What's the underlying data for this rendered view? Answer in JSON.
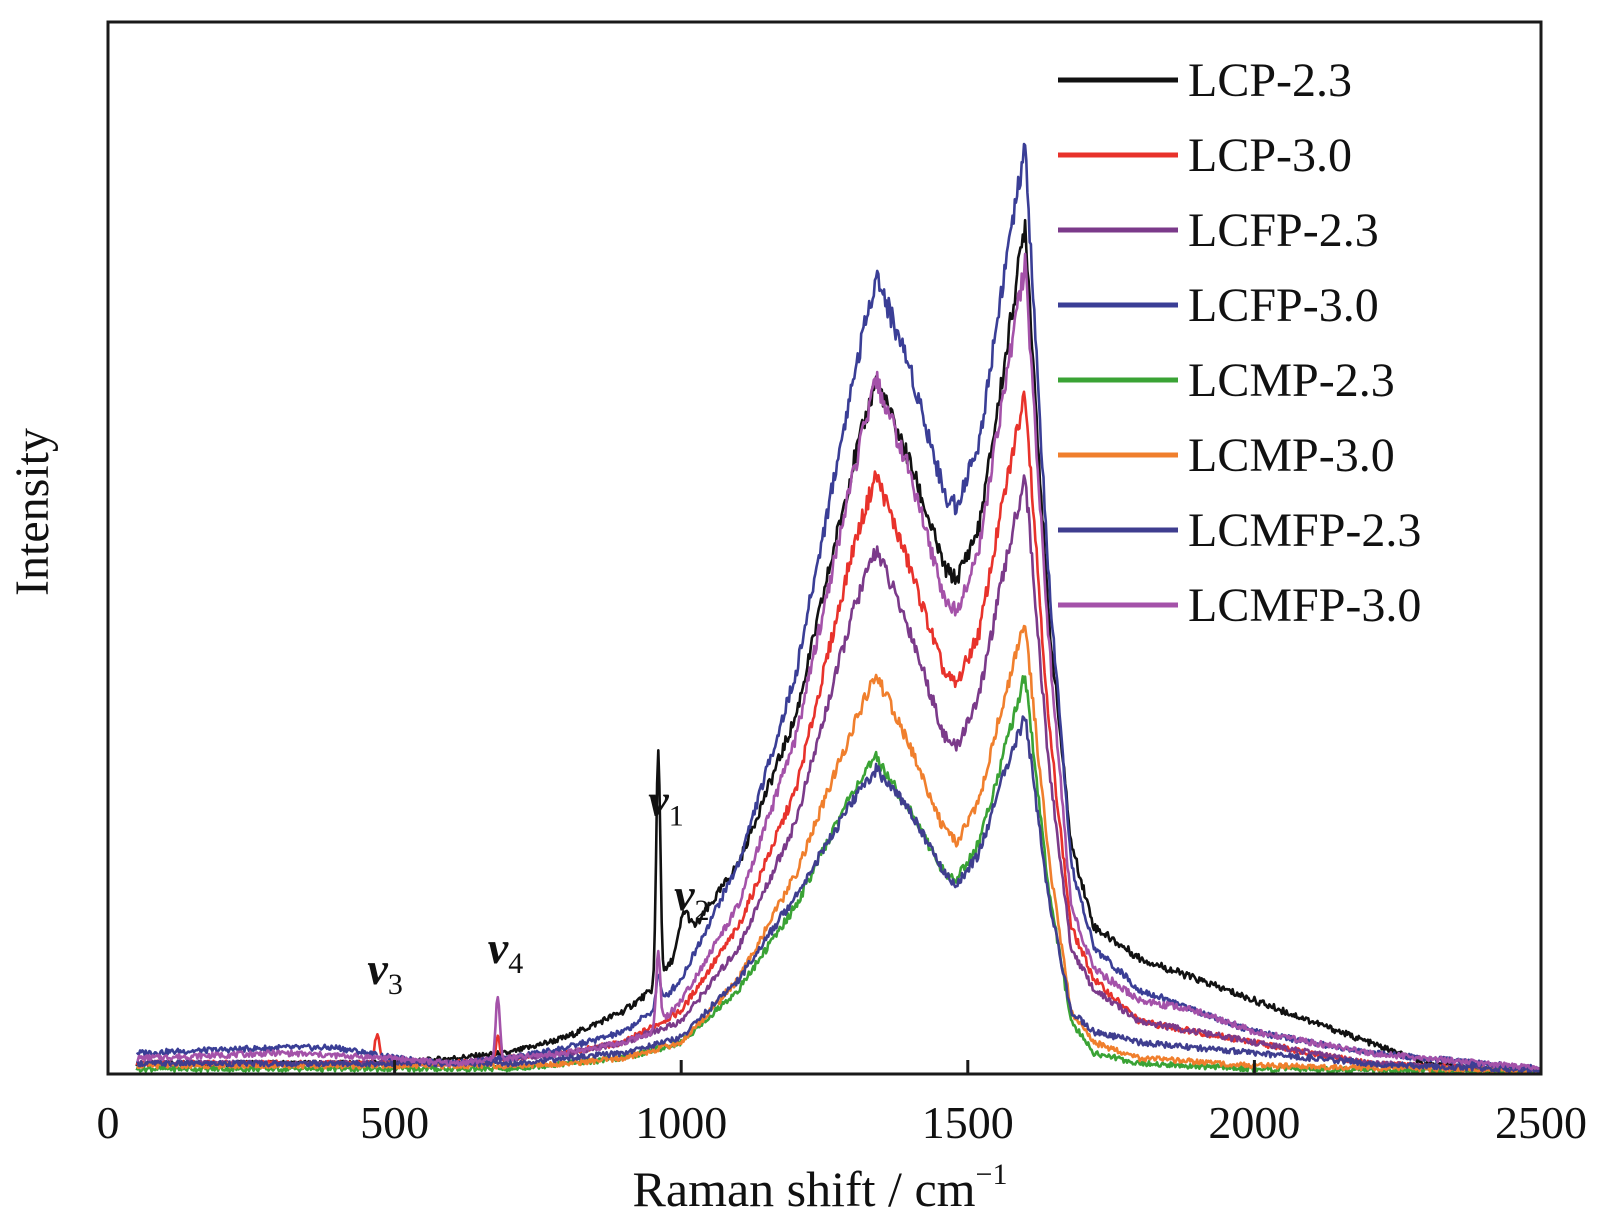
{
  "chart_data": {
    "type": "line",
    "title": "",
    "xlabel": "Raman shift / cm",
    "xlabel_superscript": "−1",
    "ylabel": "Intensity",
    "xlim": [
      0,
      2500
    ],
    "ylim": [
      0,
      100
    ],
    "xticks": [
      0,
      500,
      1000,
      1500,
      2000,
      2500
    ],
    "xtick_labels": [
      "0",
      "500",
      "1000",
      "1500",
      "2000",
      "2500"
    ],
    "grid": false,
    "legend_position": "top-right",
    "annotations": [
      {
        "base": "v",
        "sub": "1",
        "x": 960,
        "y": 24
      },
      {
        "base": "v",
        "sub": "2",
        "x": 1005,
        "y": 15
      },
      {
        "base": "v",
        "sub": "3",
        "x": 470,
        "y": 8
      },
      {
        "base": "v",
        "sub": "4",
        "x": 680,
        "y": 10
      }
    ],
    "series": [
      {
        "name": "LCP-2.3",
        "color": "#111111",
        "d1": 1340,
        "h1": 66,
        "g": 1600,
        "h2": 81,
        "points": [
          [
            50,
            1
          ],
          [
            300,
            1
          ],
          [
            500,
            1
          ],
          [
            600,
            1.5
          ],
          [
            700,
            2
          ],
          [
            800,
            3.5
          ],
          [
            900,
            6
          ],
          [
            950,
            8
          ],
          [
            1000,
            12
          ],
          [
            1100,
            20
          ],
          [
            1200,
            34
          ],
          [
            1300,
            58
          ],
          [
            1340,
            66
          ],
          [
            1400,
            58
          ],
          [
            1460,
            48
          ],
          [
            1480,
            47
          ],
          [
            1520,
            52
          ],
          [
            1560,
            66
          ],
          [
            1600,
            81
          ],
          [
            1640,
            44
          ],
          [
            1680,
            22
          ],
          [
            1720,
            14
          ],
          [
            1800,
            11
          ],
          [
            1900,
            9
          ],
          [
            2000,
            7
          ],
          [
            2100,
            5
          ],
          [
            2200,
            3
          ],
          [
            2300,
            1
          ],
          [
            2400,
            0.5
          ],
          [
            2500,
            0.3
          ]
        ]
      },
      {
        "name": "LCP-3.0",
        "color": "#e8322b",
        "d1": 1340,
        "h1": 57,
        "g": 1600,
        "h2": 65,
        "points": [
          [
            50,
            1
          ],
          [
            300,
            1
          ],
          [
            500,
            1
          ],
          [
            600,
            1
          ],
          [
            700,
            1.5
          ],
          [
            800,
            2
          ],
          [
            900,
            3
          ],
          [
            1000,
            6
          ],
          [
            1100,
            14
          ],
          [
            1200,
            27
          ],
          [
            1300,
            50
          ],
          [
            1340,
            57
          ],
          [
            1400,
            48
          ],
          [
            1460,
            38
          ],
          [
            1480,
            37
          ],
          [
            1520,
            42
          ],
          [
            1560,
            54
          ],
          [
            1600,
            65
          ],
          [
            1640,
            34
          ],
          [
            1680,
            14
          ],
          [
            1720,
            9
          ],
          [
            1800,
            5
          ],
          [
            1900,
            4
          ],
          [
            2000,
            3
          ],
          [
            2200,
            1
          ],
          [
            2500,
            0.3
          ]
        ]
      },
      {
        "name": "LCFP-2.3",
        "color": "#7b3a8a",
        "d1": 1340,
        "h1": 50,
        "g": 1600,
        "h2": 57,
        "points": [
          [
            50,
            1
          ],
          [
            300,
            1
          ],
          [
            500,
            1
          ],
          [
            600,
            1
          ],
          [
            700,
            1.5
          ],
          [
            800,
            2
          ],
          [
            900,
            3
          ],
          [
            1000,
            5
          ],
          [
            1100,
            12
          ],
          [
            1200,
            24
          ],
          [
            1300,
            44
          ],
          [
            1340,
            50
          ],
          [
            1400,
            42
          ],
          [
            1460,
            32
          ],
          [
            1480,
            31
          ],
          [
            1520,
            36
          ],
          [
            1560,
            47
          ],
          [
            1600,
            57
          ],
          [
            1640,
            30
          ],
          [
            1680,
            12
          ],
          [
            1720,
            8
          ],
          [
            1800,
            5
          ],
          [
            1900,
            4
          ],
          [
            2000,
            3
          ],
          [
            2200,
            1
          ],
          [
            2500,
            0.3
          ]
        ]
      },
      {
        "name": "LCFP-3.0",
        "color": "#3a3e96",
        "d1": 1340,
        "h1": 76,
        "g": 1600,
        "h2": 88,
        "points": [
          [
            50,
            2
          ],
          [
            300,
            2.5
          ],
          [
            400,
            2.5
          ],
          [
            500,
            1.5
          ],
          [
            600,
            1
          ],
          [
            700,
            1.5
          ],
          [
            800,
            2.5
          ],
          [
            900,
            4
          ],
          [
            950,
            6
          ],
          [
            1000,
            9
          ],
          [
            1100,
            20
          ],
          [
            1200,
            38
          ],
          [
            1300,
            66
          ],
          [
            1340,
            76
          ],
          [
            1400,
            67
          ],
          [
            1460,
            55
          ],
          [
            1480,
            54
          ],
          [
            1520,
            60
          ],
          [
            1560,
            75
          ],
          [
            1600,
            88
          ],
          [
            1640,
            48
          ],
          [
            1680,
            20
          ],
          [
            1720,
            12
          ],
          [
            1800,
            8
          ],
          [
            1900,
            6
          ],
          [
            2000,
            4
          ],
          [
            2200,
            2
          ],
          [
            2500,
            0.5
          ]
        ]
      },
      {
        "name": "LCMP-2.3",
        "color": "#3aa335",
        "d1": 1340,
        "h1": 30,
        "g": 1600,
        "h2": 38,
        "points": [
          [
            50,
            0.5
          ],
          [
            500,
            0.5
          ],
          [
            700,
            0.5
          ],
          [
            800,
            1
          ],
          [
            900,
            1.5
          ],
          [
            1000,
            3
          ],
          [
            1100,
            8
          ],
          [
            1200,
            16
          ],
          [
            1300,
            27
          ],
          [
            1340,
            30
          ],
          [
            1400,
            25
          ],
          [
            1460,
            19
          ],
          [
            1480,
            18.5
          ],
          [
            1520,
            22
          ],
          [
            1560,
            30
          ],
          [
            1600,
            38
          ],
          [
            1640,
            18
          ],
          [
            1680,
            5
          ],
          [
            1720,
            2
          ],
          [
            1800,
            1
          ],
          [
            2000,
            0.5
          ],
          [
            2500,
            0.2
          ]
        ]
      },
      {
        "name": "LCMP-3.0",
        "color": "#f07f2d",
        "d1": 1340,
        "h1": 38,
        "g": 1600,
        "h2": 43,
        "points": [
          [
            50,
            0.8
          ],
          [
            500,
            0.8
          ],
          [
            700,
            0.8
          ],
          [
            800,
            1
          ],
          [
            900,
            1.5
          ],
          [
            1000,
            3
          ],
          [
            1100,
            9
          ],
          [
            1200,
            19
          ],
          [
            1300,
            33
          ],
          [
            1340,
            38
          ],
          [
            1400,
            31
          ],
          [
            1460,
            23
          ],
          [
            1480,
            22
          ],
          [
            1520,
            26
          ],
          [
            1560,
            35
          ],
          [
            1600,
            43
          ],
          [
            1640,
            21
          ],
          [
            1680,
            6
          ],
          [
            1720,
            3
          ],
          [
            1800,
            1.5
          ],
          [
            2000,
            0.8
          ],
          [
            2500,
            0.3
          ]
        ]
      },
      {
        "name": "LCMFP-2.3",
        "color": "#3f3e8f",
        "d1": 1340,
        "h1": 29,
        "g": 1600,
        "h2": 34,
        "points": [
          [
            50,
            1
          ],
          [
            300,
            1
          ],
          [
            500,
            1
          ],
          [
            700,
            1
          ],
          [
            800,
            1.5
          ],
          [
            900,
            2
          ],
          [
            1000,
            3.5
          ],
          [
            1100,
            9
          ],
          [
            1200,
            17
          ],
          [
            1300,
            26
          ],
          [
            1340,
            29
          ],
          [
            1400,
            25
          ],
          [
            1460,
            19
          ],
          [
            1480,
            18
          ],
          [
            1520,
            21
          ],
          [
            1560,
            28
          ],
          [
            1600,
            34
          ],
          [
            1640,
            17
          ],
          [
            1680,
            6
          ],
          [
            1720,
            4
          ],
          [
            1800,
            3
          ],
          [
            1900,
            2.5
          ],
          [
            2000,
            2
          ],
          [
            2200,
            1
          ],
          [
            2500,
            0.3
          ]
        ]
      },
      {
        "name": "LCMFP-3.0",
        "color": "#a452a9",
        "d1": 1340,
        "h1": 66,
        "g": 1600,
        "h2": 77,
        "points": [
          [
            50,
            1.5
          ],
          [
            300,
            2
          ],
          [
            500,
            1.5
          ],
          [
            600,
            1
          ],
          [
            700,
            1.5
          ],
          [
            800,
            2
          ],
          [
            900,
            3
          ],
          [
            950,
            4
          ],
          [
            1000,
            7
          ],
          [
            1100,
            16
          ],
          [
            1200,
            32
          ],
          [
            1300,
            57
          ],
          [
            1340,
            66
          ],
          [
            1400,
            57
          ],
          [
            1460,
            45
          ],
          [
            1480,
            44
          ],
          [
            1520,
            50
          ],
          [
            1560,
            64
          ],
          [
            1600,
            77
          ],
          [
            1640,
            42
          ],
          [
            1680,
            16
          ],
          [
            1720,
            10
          ],
          [
            1800,
            7
          ],
          [
            1900,
            6
          ],
          [
            2000,
            4
          ],
          [
            2200,
            2
          ],
          [
            2500,
            0.5
          ]
        ]
      }
    ]
  }
}
